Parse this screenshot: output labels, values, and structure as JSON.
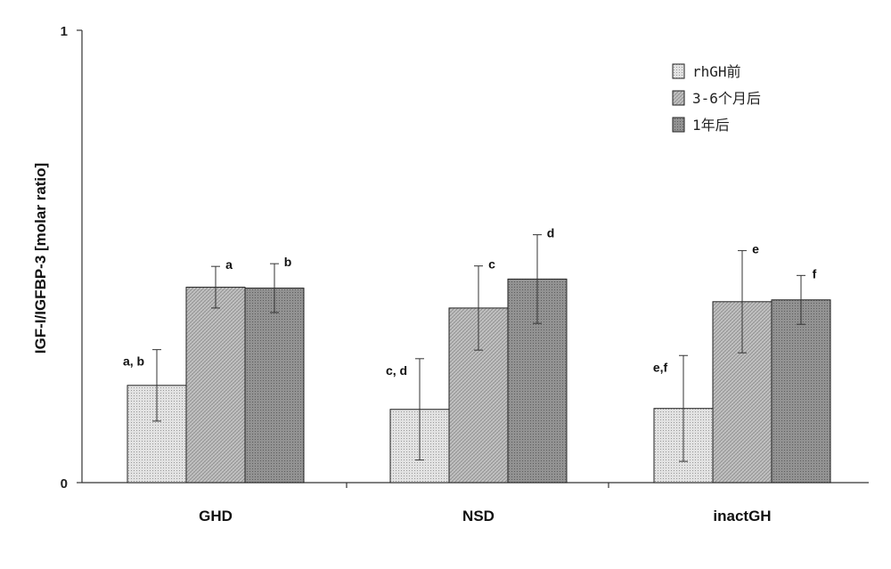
{
  "chart_data": {
    "type": "bar",
    "title": "",
    "ylabel": "IGF-I/IGFBP-3 [molar ratio]",
    "xlabel": "",
    "ylim": [
      0,
      1
    ],
    "yticks": [
      "0",
      "1"
    ],
    "grid": false,
    "legend_position": "top-right",
    "categories": [
      "GHD",
      "NSD",
      "inactGH"
    ],
    "series": [
      {
        "name": "rhGH前",
        "color": "#e0e0e0",
        "pattern": "dots-light",
        "values": [
          0.215,
          0.162,
          0.164
        ],
        "error": [
          0.079,
          0.112,
          0.117
        ],
        "labels": [
          "a, b",
          "c, d",
          "e,f"
        ]
      },
      {
        "name": "3-6个月后",
        "color": "#bdbdbd",
        "pattern": "crosshatch",
        "values": [
          0.432,
          0.386,
          0.4
        ],
        "error": [
          0.046,
          0.093,
          0.113
        ],
        "labels": [
          "a",
          "c",
          "e"
        ]
      },
      {
        "name": "1年后",
        "color": "#8f8f8f",
        "pattern": "dots-dark",
        "values": [
          0.43,
          0.45,
          0.404
        ],
        "error": [
          0.054,
          0.098,
          0.054
        ],
        "labels": [
          "b",
          "d",
          "f"
        ]
      }
    ]
  }
}
